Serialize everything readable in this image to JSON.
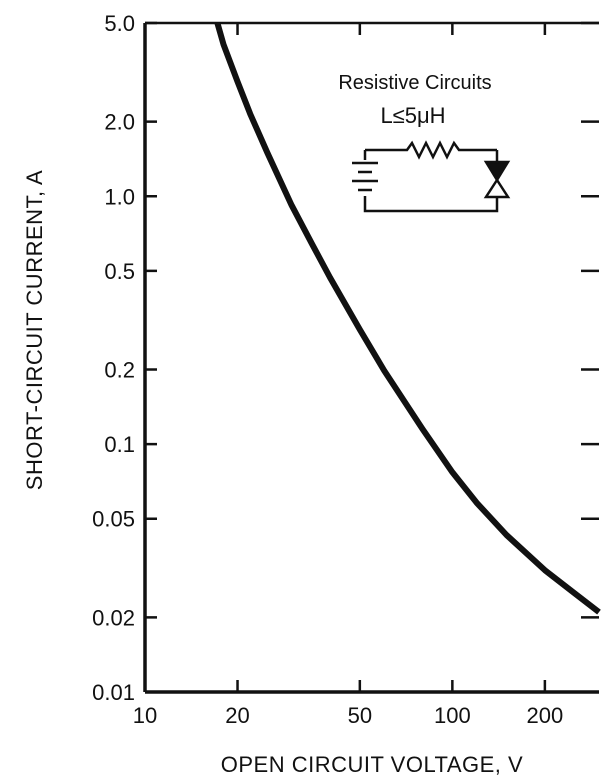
{
  "chart_data": {
    "type": "line",
    "xscale": "log",
    "yscale": "log",
    "xlim": [
      10,
      300
    ],
    "ylim": [
      0.01,
      5.0
    ],
    "xlabel": "OPEN CIRCUIT VOLTAGE, V",
    "ylabel": "SHORT-CIRCUIT CURRENT, A",
    "x_ticks": [
      {
        "value": 10,
        "label": "10"
      },
      {
        "value": 20,
        "label": "20"
      },
      {
        "value": 50,
        "label": "50"
      },
      {
        "value": 100,
        "label": "100"
      },
      {
        "value": 200,
        "label": "200"
      }
    ],
    "y_ticks": [
      {
        "value": 0.01,
        "label": "0.01"
      },
      {
        "value": 0.02,
        "label": "0.02"
      },
      {
        "value": 0.05,
        "label": "0.05"
      },
      {
        "value": 0.1,
        "label": "0.1"
      },
      {
        "value": 0.2,
        "label": "0.2"
      },
      {
        "value": 0.5,
        "label": "0.5"
      },
      {
        "value": 1.0,
        "label": "1.0"
      },
      {
        "value": 2.0,
        "label": "2.0"
      },
      {
        "value": 5.0,
        "label": "5.0"
      }
    ],
    "series": [
      {
        "x": [
          17.2,
          18,
          20,
          22,
          25,
          30,
          35,
          40,
          50,
          60,
          70,
          80,
          100,
          120,
          150,
          200,
          250,
          300
        ],
        "y": [
          5.0,
          4.1,
          2.9,
          2.15,
          1.5,
          0.92,
          0.64,
          0.47,
          0.29,
          0.198,
          0.148,
          0.115,
          0.077,
          0.058,
          0.043,
          0.031,
          0.025,
          0.021
        ]
      }
    ],
    "annotations": {
      "title_line1": "Resistive Circuits",
      "title_line2": "L≤5μH"
    },
    "grid": false
  }
}
